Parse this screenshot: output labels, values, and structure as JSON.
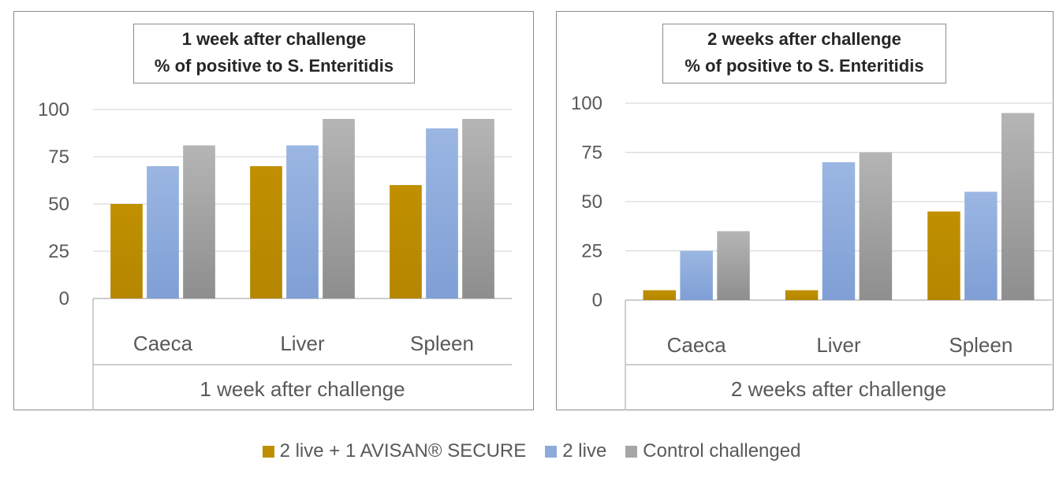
{
  "chart_data": [
    {
      "type": "bar",
      "title_lines": [
        "1 week after challenge",
        "% of positive to S. Enteritidis"
      ],
      "categories": [
        "Caeca",
        "Liver",
        "Spleen"
      ],
      "group_label": "1 week after challenge",
      "yticks": [
        "0",
        "25",
        "50",
        "75",
        "100"
      ],
      "ylim": [
        0,
        100
      ],
      "grid": true,
      "series": [
        {
          "name": "2 live + 1 AVISAN® SECURE",
          "values": [
            50,
            70,
            60
          ]
        },
        {
          "name": "2 live",
          "values": [
            70,
            81,
            90
          ]
        },
        {
          "name": "Control challenged",
          "values": [
            81,
            95,
            95
          ]
        }
      ]
    },
    {
      "type": "bar",
      "title_lines": [
        "2 weeks after challenge",
        "% of positive to S. Enteritidis"
      ],
      "categories": [
        "Caeca",
        "Liver",
        "Spleen"
      ],
      "group_label": "2 weeks after challenge",
      "yticks": [
        "0",
        "25",
        "50",
        "75",
        "100"
      ],
      "ylim": [
        0,
        100
      ],
      "grid": true,
      "series": [
        {
          "name": "2 live + 1 AVISAN® SECURE",
          "values": [
            5,
            5,
            45
          ]
        },
        {
          "name": "2 live",
          "values": [
            25,
            70,
            55
          ]
        },
        {
          "name": "Control challenged",
          "values": [
            35,
            75,
            95
          ]
        }
      ]
    }
  ],
  "legend": {
    "placement": "bottom",
    "items": [
      {
        "label": "2 live + 1 AVISAN® SECURE",
        "color": "#bf8f00"
      },
      {
        "label": "2 live",
        "color": "#8eaadb"
      },
      {
        "label": "Control challenged",
        "color": "#a6a6a6"
      }
    ]
  },
  "colors": {
    "series": [
      "#bf8f00",
      "#8eaadb",
      "#a6a6a6"
    ],
    "grid": "#d9d9d9",
    "axis": "#bfbfbf"
  }
}
